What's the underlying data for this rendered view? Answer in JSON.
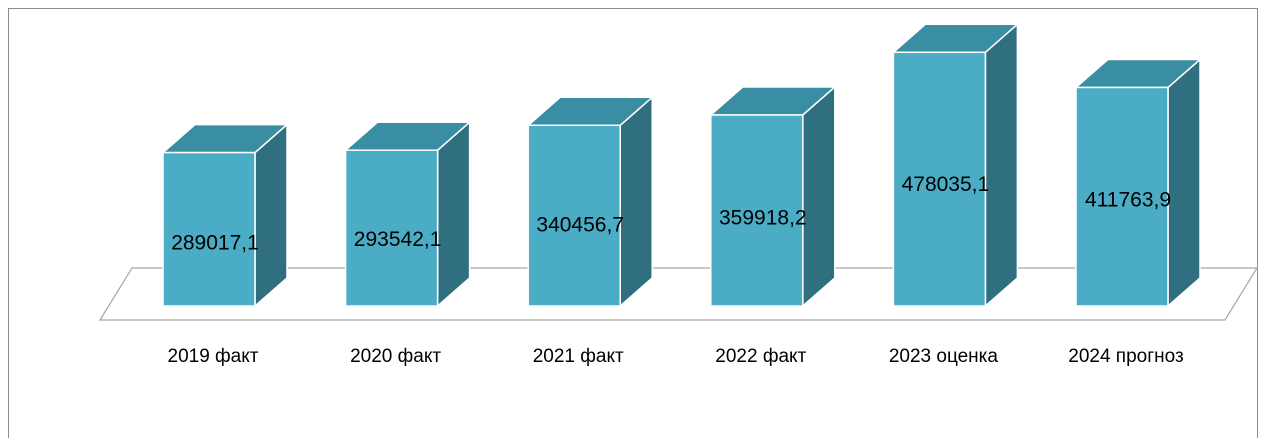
{
  "chart_data": {
    "type": "bar",
    "categories": [
      "2019 факт",
      "2020 факт",
      "2021 факт",
      "2022 факт",
      "2023 оценка",
      "2024 прогноз"
    ],
    "values": [
      289017.1,
      293542.1,
      340456.7,
      359918.2,
      478035.1,
      411763.9
    ],
    "value_labels": [
      "289017,1",
      "293542,1",
      "340456,7",
      "359918,2",
      "478035,1",
      "411763,9"
    ],
    "ylim": [
      0,
      520000
    ],
    "grid": false,
    "legend": "none",
    "style": "3d-column"
  },
  "colors": {
    "bar_front": "#4bacc6",
    "bar_side": "#2f6f7f",
    "bar_top": "#3a8ea3",
    "bar_edge": "#ffffff",
    "floor_edge": "#a6a6a6",
    "frame": "#8c8c8c"
  }
}
